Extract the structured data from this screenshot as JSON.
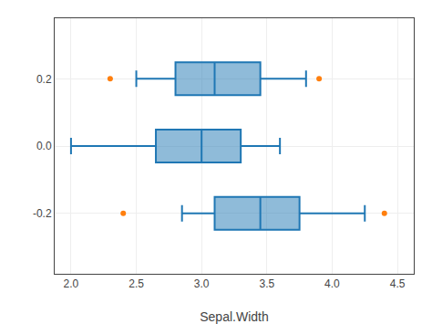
{
  "chart_data": {
    "type": "box",
    "orientation": "horizontal",
    "xlabel": "Sepal.Width",
    "xlim": [
      1.875,
      4.625
    ],
    "ylim": [
      -0.38,
      0.38
    ],
    "xticks": [
      {
        "value": 2.0,
        "label": "2.0"
      },
      2.5,
      {
        "value": 3.0,
        "label": "3.0"
      },
      3.5,
      {
        "value": 4.0,
        "label": "4.0"
      },
      4.5
    ],
    "yticks": [
      -0.2,
      {
        "value": 0.0,
        "label": "0.0"
      },
      0.2
    ],
    "grid": true,
    "boxes": [
      {
        "y": 0.2,
        "q1": 2.8,
        "median": 3.1,
        "q3": 3.45,
        "whisker_low": 2.5,
        "whisker_high": 3.8,
        "outliers": [
          2.3,
          3.9
        ]
      },
      {
        "y": 0.0,
        "q1": 2.65,
        "median": 3.0,
        "q3": 3.3,
        "whisker_low": 2.0,
        "whisker_high": 3.6,
        "outliers": []
      },
      {
        "y": -0.2,
        "q1": 3.1,
        "median": 3.45,
        "q3": 3.75,
        "whisker_low": 2.85,
        "whisker_high": 4.25,
        "outliers": [
          2.4,
          4.4
        ]
      }
    ]
  }
}
